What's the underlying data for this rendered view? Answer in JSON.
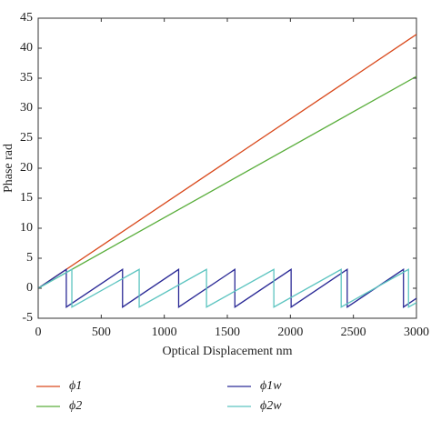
{
  "chart_data": {
    "type": "line",
    "xlabel": "Optical Displacement nm",
    "ylabel": "Phase rad",
    "xlim": [
      0,
      3000
    ],
    "xticks": [
      0,
      500,
      1000,
      1500,
      2000,
      2500,
      3000
    ],
    "ylim": [
      -5,
      45
    ],
    "yticks": [
      -5,
      0,
      5,
      10,
      15,
      20,
      25,
      30,
      35,
      40,
      45
    ],
    "series": [
      {
        "name": "ϕ1",
        "color": "#d9491c",
        "x": [
          0,
          3000
        ],
        "values": [
          0,
          42.3
        ]
      },
      {
        "name": "ϕ2",
        "color": "#5aae3c",
        "x": [
          0,
          3000
        ],
        "values": [
          0,
          35.3
        ]
      },
      {
        "name": "ϕ1w",
        "color": "#2b2a96",
        "x": [
          0,
          223,
          223,
          669,
          669,
          1114,
          1114,
          1560,
          1560,
          2006,
          2006,
          2451,
          2451,
          2897,
          2897,
          3000
        ],
        "values": [
          0,
          3.14,
          -3.14,
          3.14,
          -3.14,
          3.14,
          -3.14,
          3.14,
          -3.14,
          3.14,
          -3.14,
          3.14,
          -3.14,
          3.14,
          -3.14,
          -1.68
        ]
      },
      {
        "name": "ϕ2w",
        "color": "#5cc4c0",
        "x": [
          0,
          267,
          267,
          801,
          801,
          1335,
          1335,
          1869,
          1869,
          2403,
          2403,
          2937,
          2937,
          3000
        ],
        "values": [
          0,
          3.14,
          -3.14,
          3.14,
          -3.14,
          3.14,
          -3.14,
          3.14,
          -3.14,
          3.14,
          -3.14,
          3.14,
          -3.14,
          -2.4
        ]
      }
    ]
  }
}
